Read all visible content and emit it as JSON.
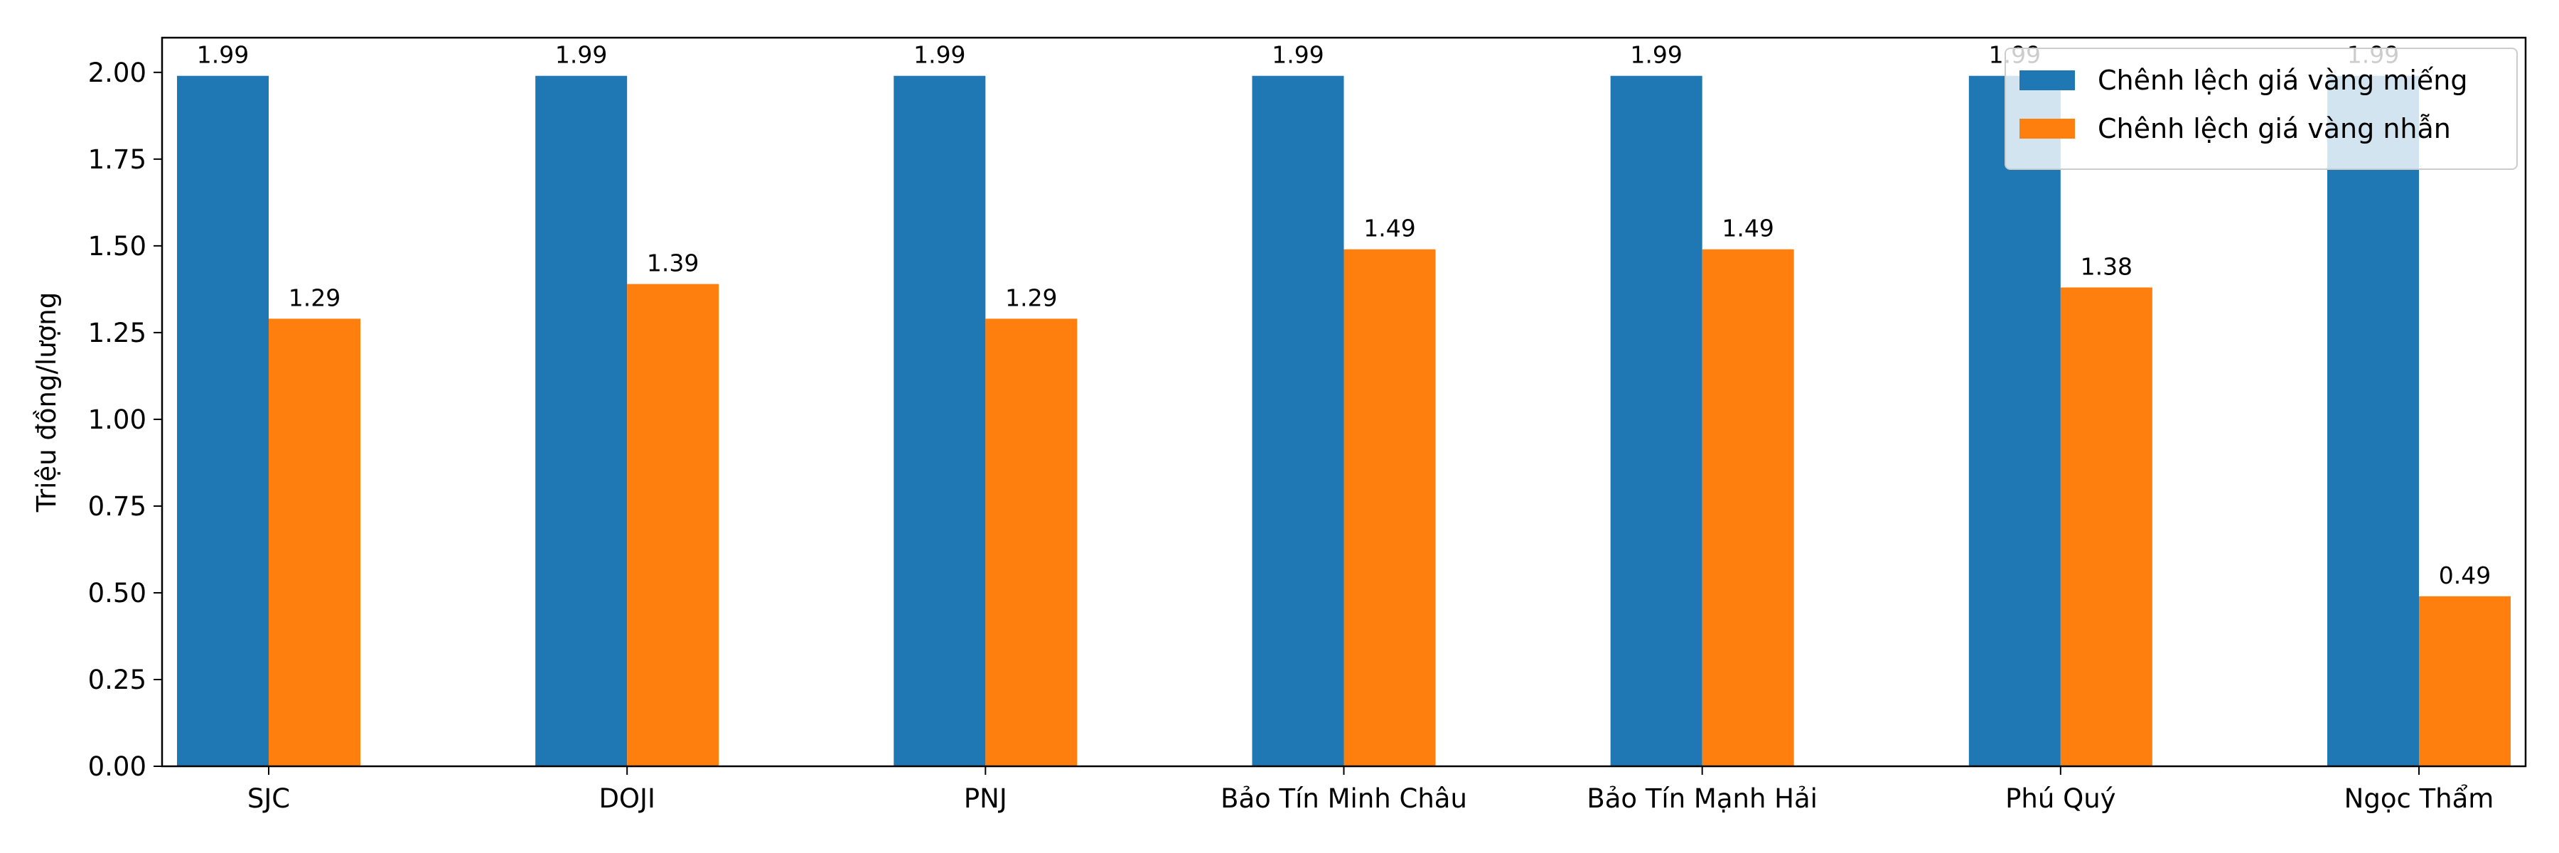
{
  "chart_data": {
    "type": "bar",
    "title": "",
    "xlabel": "",
    "ylabel": "Triệu đồng/lượng",
    "ylim": [
      0,
      2.1
    ],
    "yticks": [
      0.0,
      0.25,
      0.5,
      0.75,
      1.0,
      1.25,
      1.5,
      1.75,
      2.0
    ],
    "ytick_labels": [
      "0.00",
      "0.25",
      "0.50",
      "0.75",
      "1.00",
      "1.25",
      "1.50",
      "1.75",
      "2.00"
    ],
    "categories": [
      "SJC",
      "DOJI",
      "PNJ",
      "Bảo Tín Minh Châu",
      "Bảo Tín Mạnh Hải",
      "Phú Quý",
      "Ngọc Thẩm"
    ],
    "series": [
      {
        "name": "Chênh lệch giá vàng miếng",
        "color": "#1f77b4",
        "values": [
          1.99,
          1.99,
          1.99,
          1.99,
          1.99,
          1.99,
          1.99
        ],
        "labels": [
          "1.99",
          "1.99",
          "1.99",
          "1.99",
          "1.99",
          "1.99",
          "1.99"
        ]
      },
      {
        "name": "Chênh lệch giá vàng nhẫn",
        "color": "#ff7f0e",
        "values": [
          1.29,
          1.39,
          1.29,
          1.49,
          1.49,
          1.38,
          0.49
        ],
        "labels": [
          "1.29",
          "1.39",
          "1.29",
          "1.49",
          "1.49",
          "1.38",
          "0.49"
        ]
      }
    ],
    "grid": false,
    "legend_position": "upper right"
  }
}
